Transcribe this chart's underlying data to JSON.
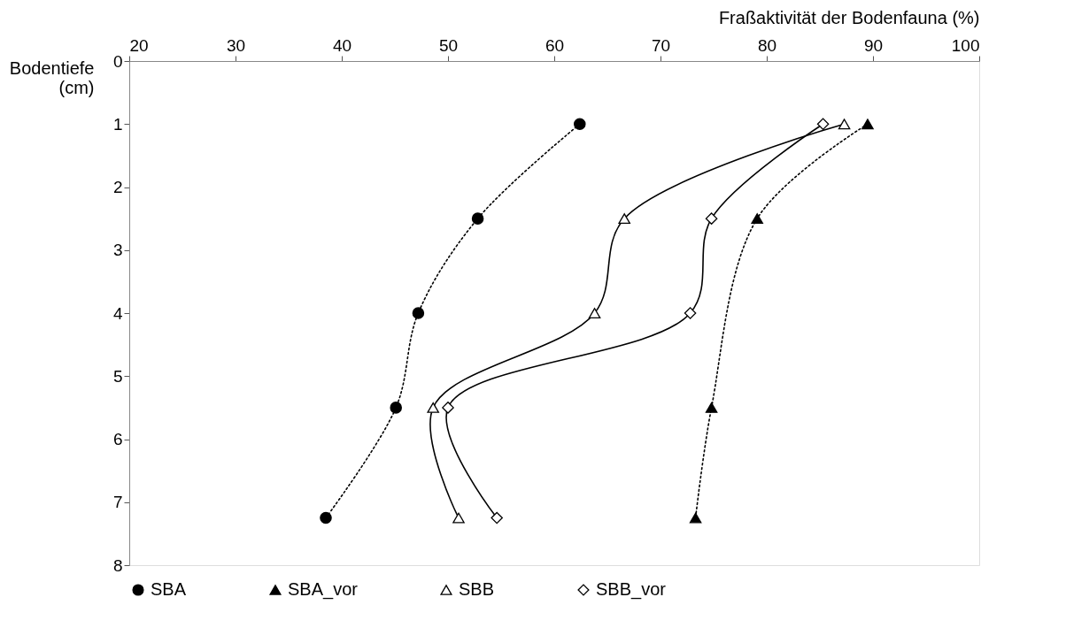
{
  "chart_data": {
    "type": "line",
    "xlabel": "Fraßaktivität der Bodenfauna (%)",
    "ylabel": "Bodentiefe\n(cm)",
    "xlim": [
      20,
      100
    ],
    "xticks": [
      20,
      30,
      40,
      50,
      60,
      70,
      80,
      90,
      100
    ],
    "ylim": [
      8,
      0
    ],
    "yticks": [
      0,
      1,
      2,
      3,
      4,
      5,
      6,
      7,
      8
    ],
    "grid": false,
    "legend": "bottom",
    "series": [
      {
        "name": "SBA",
        "color": "#000000",
        "marker": "circle",
        "line_style": "dotted",
        "x": [
          62.4,
          52.8,
          47.2,
          45.1,
          38.5
        ],
        "values": [
          1,
          2.5,
          4,
          5.5,
          7.25
        ]
      },
      {
        "name": "SBA_vor",
        "color": "#000000",
        "marker": "triangle",
        "line_style": "dotted",
        "x": [
          89.5,
          79.1,
          74.8,
          73.3
        ],
        "values": [
          1,
          2.5,
          5.5,
          7.25
        ]
      },
      {
        "name": "SBB",
        "color": "#000000",
        "marker": "triangle",
        "line_style": "solid",
        "x": [
          87.3,
          66.6,
          63.8,
          48.6,
          51.0
        ],
        "values": [
          1,
          2.5,
          4,
          5.5,
          7.25
        ]
      },
      {
        "name": "SBB_vor",
        "color": "#000000",
        "marker": "diamond",
        "line_style": "solid",
        "x": [
          85.3,
          74.8,
          72.8,
          50.0,
          54.6
        ],
        "values": [
          1,
          2.5,
          4,
          5.5,
          7.25
        ]
      }
    ]
  }
}
